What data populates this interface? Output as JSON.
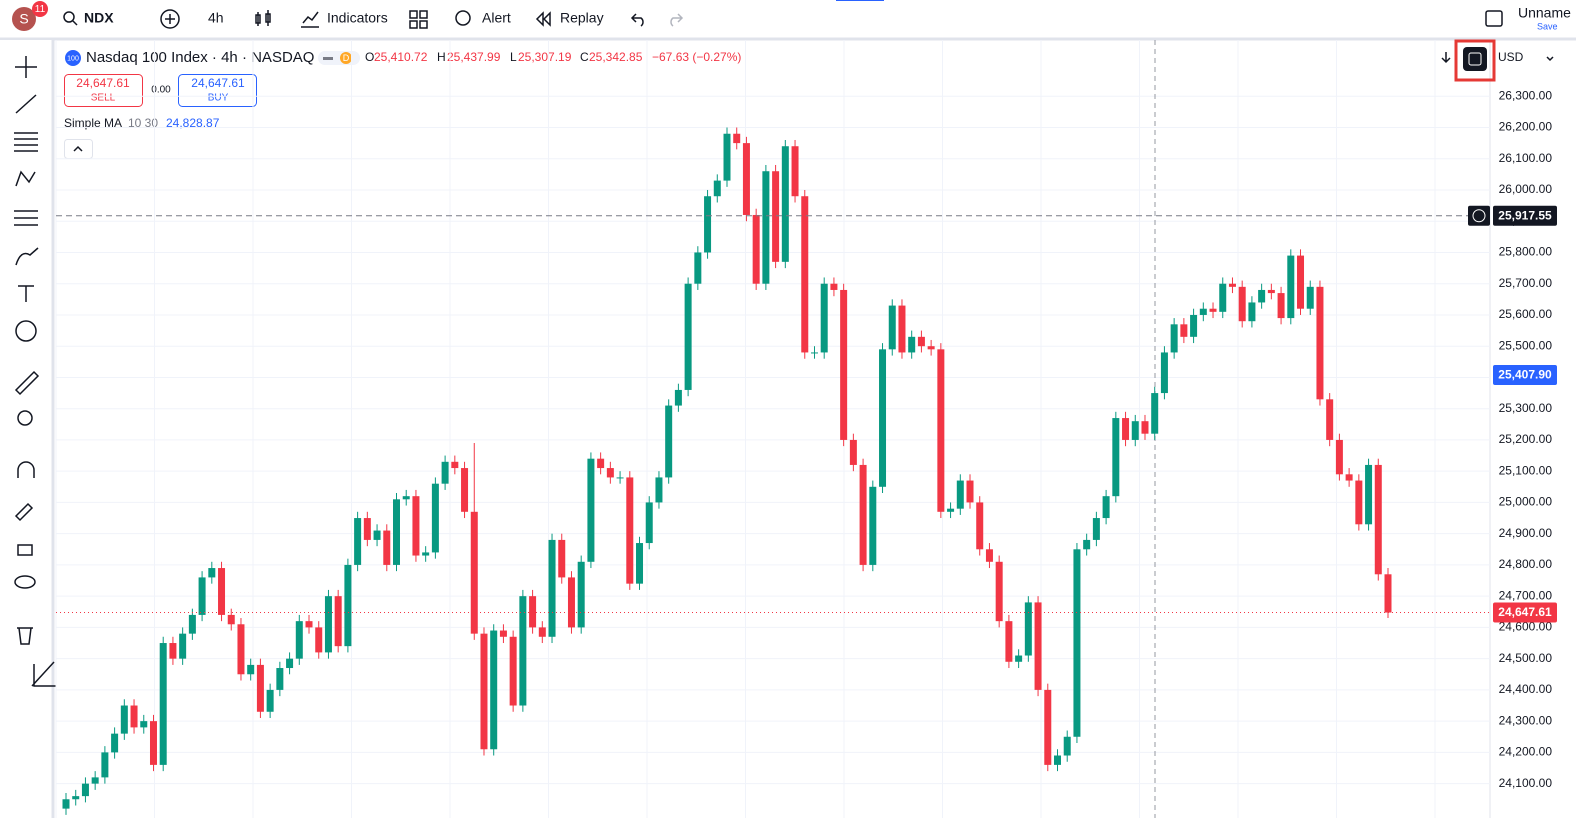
{
  "toolbar": {
    "avatar": "S",
    "badge": "11",
    "symbol": "NDX",
    "interval": "4h",
    "indicators": "Indicators",
    "alert": "Alert",
    "replay": "Replay",
    "layout_name": "Unname",
    "save": "Save"
  },
  "legend": {
    "logo": "100",
    "title": "Nasdaq 100 Index · 4h · NASDAQ",
    "session": "D",
    "o_label": "O",
    "o": "25,410.72",
    "h_label": "H",
    "h": "25,437.99",
    "l_label": "L",
    "l": "25,307.19",
    "c_label": "C",
    "c": "25,342.85",
    "change": "−67.63 (−0.27%)",
    "sell_price": "24,647.61",
    "sell": "SELL",
    "spread": "0.00",
    "buy_price": "24,647.61",
    "buy": "BUY",
    "indicator_name": "Simple MA",
    "indicator_params": "10 30",
    "indicator_value": "24,828.87",
    "currency": "USD"
  },
  "chart_data": {
    "type": "candlestick",
    "up_color": "#089981",
    "down_color": "#f23645",
    "grid": true,
    "ylim": [
      23990,
      26480
    ],
    "yticks": [
      {
        "value": 24100,
        "label": "24,100.00"
      },
      {
        "value": 24200,
        "label": "24,200.00"
      },
      {
        "value": 24300,
        "label": "24,300.00"
      },
      {
        "value": 24400,
        "label": "24,400.00"
      },
      {
        "value": 24500,
        "label": "24,500.00"
      },
      {
        "value": 24600,
        "label": "24,600.00"
      },
      {
        "value": 24700,
        "label": "24,700.00"
      },
      {
        "value": 24800,
        "label": "24,800.00"
      },
      {
        "value": 24900,
        "label": "24,900.00"
      },
      {
        "value": 25000,
        "label": "25,000.00"
      },
      {
        "value": 25100,
        "label": "25,100.00"
      },
      {
        "value": 25200,
        "label": "25,200.00"
      },
      {
        "value": 25300,
        "label": "25,300.00"
      },
      {
        "value": 25400,
        "label": "25,400.00"
      },
      {
        "value": 25500,
        "label": "25,500.00"
      },
      {
        "value": 25600,
        "label": "25,600.00"
      },
      {
        "value": 25700,
        "label": "25,700.00"
      },
      {
        "value": 25800,
        "label": "25,800.00"
      },
      {
        "value": 25900,
        "label": "25,900.00"
      },
      {
        "value": 26000,
        "label": "26,000.00"
      },
      {
        "value": 26100,
        "label": "26,100.00"
      },
      {
        "value": 26200,
        "label": "26,200.00"
      },
      {
        "value": 26300,
        "label": "26,300.00"
      }
    ],
    "price_labels": [
      {
        "value": 25917.55,
        "label": "25,917.55",
        "color": "#131722",
        "line": "dashed"
      },
      {
        "value": 25407.9,
        "label": "25,407.90",
        "color": "#2962ff"
      },
      {
        "value": 24647.61,
        "label": "24,647.61",
        "color": "#f23645",
        "line": "dotted"
      }
    ],
    "open": [
      24020,
      24050,
      24060,
      24100,
      24120,
      24200,
      24260,
      24350,
      24280,
      24300,
      24160,
      24550,
      24500,
      24580,
      24640,
      24760,
      24790,
      24640,
      24610,
      24450,
      24480,
      24330,
      24400,
      24470,
      24500,
      24620,
      24600,
      24520,
      24700,
      24540,
      24800,
      24950,
      24880,
      24910,
      24800,
      25010,
      25020,
      24830,
      24840,
      25060,
      25130,
      25110,
      24970,
      24580,
      24210,
      24590,
      24570,
      24350,
      24700,
      24600,
      24570,
      24880,
      24760,
      24600,
      24810,
      25140,
      25110,
      25080,
      25080,
      24740,
      24870,
      25000,
      25080,
      25310,
      25360,
      25700,
      25800,
      25980,
      26030,
      26180,
      26150,
      25920,
      25700,
      26060,
      25770,
      26140,
      25980,
      25480,
      25480,
      25700,
      25680,
      25200,
      25120,
      24800,
      25050,
      25490,
      25630,
      25480,
      25530,
      25500,
      25490,
      24970,
      24980,
      25070,
      25000,
      24850,
      24810,
      24620,
      24490,
      24510,
      24680,
      24400,
      24160,
      24190,
      24250,
      24850,
      24880,
      24950,
      25020,
      25270,
      25200,
      25260,
      25220,
      25350,
      25480,
      25570,
      25530,
      25600,
      25620,
      25610,
      25700,
      25690,
      25580,
      25640,
      25680,
      25670,
      25590,
      25790,
      25620,
      25690,
      25330,
      25200,
      25090,
      25070,
      24930,
      25120,
      24770
    ],
    "high": [
      24070,
      24080,
      24120,
      24140,
      24220,
      24280,
      24370,
      24370,
      24320,
      24320,
      24570,
      24570,
      24600,
      24660,
      24780,
      24810,
      24810,
      24660,
      24630,
      24500,
      24500,
      24420,
      24490,
      24520,
      24640,
      24640,
      24620,
      24720,
      24720,
      24820,
      24970,
      24970,
      24930,
      24930,
      25030,
      25040,
      25040,
      24860,
      25080,
      25150,
      25150,
      25130,
      25190,
      24600,
      24610,
      24610,
      24590,
      24720,
      24720,
      24620,
      24900,
      24900,
      24780,
      24830,
      25160,
      25160,
      25130,
      25100,
      25100,
      24890,
      25020,
      25100,
      25330,
      25380,
      25720,
      25820,
      26000,
      26050,
      26200,
      26200,
      26170,
      25940,
      26080,
      26080,
      26160,
      26160,
      26000,
      25500,
      25720,
      25720,
      25700,
      25220,
      25140,
      25070,
      25510,
      25650,
      25650,
      25550,
      25550,
      25520,
      25510,
      25000,
      25090,
      25090,
      25020,
      24870,
      24830,
      24640,
      24530,
      24700,
      24700,
      24420,
      24210,
      24270,
      24870,
      24900,
      24970,
      25040,
      25290,
      25290,
      25280,
      25280,
      25370,
      25500,
      25590,
      25590,
      25620,
      25640,
      25640,
      25720,
      25720,
      25710,
      25660,
      25700,
      25700,
      25690,
      25810,
      25810,
      25710,
      25710,
      25350,
      25220,
      25110,
      25090,
      25140,
      25140,
      24790
    ],
    "low": [
      24000,
      24030,
      24040,
      24080,
      24100,
      24180,
      24240,
      24260,
      24260,
      24140,
      24140,
      24480,
      24480,
      24560,
      24620,
      24740,
      24620,
      24590,
      24430,
      24430,
      24310,
      24310,
      24380,
      24450,
      24480,
      24580,
      24500,
      24500,
      24520,
      24520,
      24780,
      24860,
      24860,
      24780,
      24780,
      24990,
      24810,
      24810,
      24820,
      25040,
      25090,
      24950,
      24560,
      24190,
      24190,
      24550,
      24330,
      24330,
      24580,
      24550,
      24550,
      24740,
      24580,
      24580,
      24790,
      25090,
      25060,
      25060,
      24720,
      24720,
      24850,
      24980,
      25060,
      25290,
      25340,
      25680,
      25780,
      25960,
      26010,
      26130,
      25900,
      25680,
      25680,
      25750,
      25750,
      25960,
      25460,
      25460,
      25460,
      25660,
      25180,
      25100,
      24780,
      24780,
      25030,
      25470,
      25460,
      25460,
      25480,
      25470,
      24950,
      24950,
      24960,
      24980,
      24830,
      24790,
      24600,
      24470,
      24470,
      24490,
      24380,
      24140,
      24140,
      24170,
      24230,
      24830,
      24860,
      24930,
      25000,
      25180,
      25180,
      25200,
      25200,
      25330,
      25460,
      25510,
      25510,
      25580,
      25590,
      25590,
      25670,
      25560,
      25560,
      25620,
      25650,
      25570,
      25570,
      25600,
      25600,
      25310,
      25180,
      25070,
      25050,
      24910,
      24910,
      24750,
      24630
    ],
    "close": [
      24050,
      24060,
      24100,
      24120,
      24200,
      24260,
      24350,
      24280,
      24300,
      24160,
      24550,
      24500,
      24580,
      24640,
      24760,
      24790,
      24640,
      24610,
      24450,
      24480,
      24330,
      24400,
      24470,
      24500,
      24620,
      24600,
      24520,
      24700,
      24540,
      24800,
      24950,
      24880,
      24910,
      24800,
      25010,
      25020,
      24830,
      24840,
      25060,
      25130,
      25110,
      24970,
      24580,
      24210,
      24590,
      24570,
      24350,
      24700,
      24600,
      24570,
      24880,
      24760,
      24600,
      24810,
      25140,
      25110,
      25080,
      25080,
      24740,
      24870,
      25000,
      25080,
      25310,
      25360,
      25700,
      25800,
      25980,
      26030,
      26180,
      26150,
      25920,
      25700,
      26060,
      25770,
      26140,
      25980,
      25480,
      25480,
      25700,
      25680,
      25200,
      25120,
      24800,
      25050,
      25490,
      25630,
      25480,
      25530,
      25500,
      25490,
      24970,
      24980,
      25070,
      25000,
      24850,
      24810,
      24620,
      24490,
      24510,
      24680,
      24400,
      24160,
      24190,
      24250,
      24850,
      24880,
      24950,
      25020,
      25270,
      25200,
      25260,
      25220,
      25350,
      25480,
      25570,
      25530,
      25600,
      25620,
      25610,
      25700,
      25690,
      25580,
      25640,
      25680,
      25670,
      25590,
      25790,
      25620,
      25690,
      25330,
      25200,
      25090,
      25070,
      24930,
      25120,
      24770,
      24647.61
    ]
  }
}
